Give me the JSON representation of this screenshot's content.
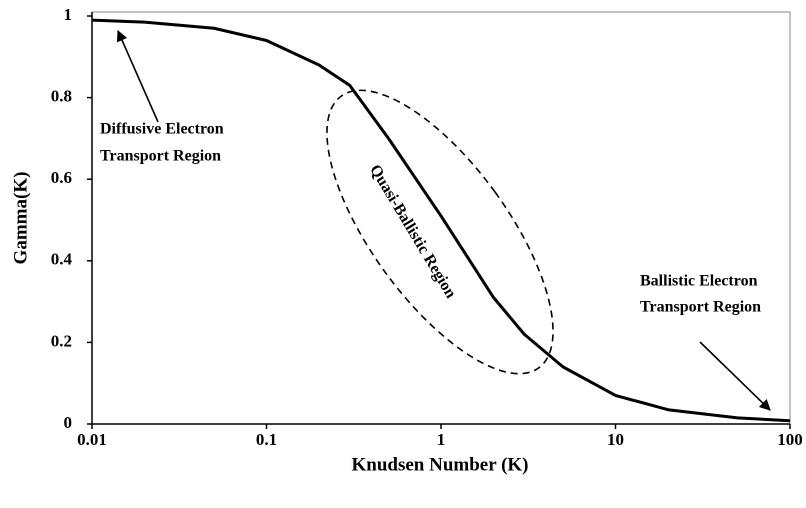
{
  "chart_data": {
    "type": "line",
    "xlabel": "Knudsen Number (K)",
    "ylabel": "Gamma(K)",
    "xscale": "log",
    "xlim": [
      0.01,
      100
    ],
    "ylim": [
      0,
      1
    ],
    "xticks": [
      0.01,
      0.1,
      1,
      10,
      100
    ],
    "yticks": [
      0,
      0.2,
      0.4,
      0.6,
      0.8,
      1
    ],
    "grid": false,
    "series": [
      {
        "color": "#000000",
        "x": [
          0.01,
          0.02,
          0.05,
          0.1,
          0.2,
          0.3,
          0.5,
          1,
          2,
          3,
          5,
          10,
          20,
          50,
          100
        ],
        "values": [
          0.99,
          0.985,
          0.97,
          0.94,
          0.88,
          0.83,
          0.7,
          0.51,
          0.31,
          0.22,
          0.14,
          0.07,
          0.035,
          0.015,
          0.008
        ]
      }
    ],
    "annotations": [
      {
        "text": [
          "Diffusive Electron",
          "Transport Region"
        ]
      },
      {
        "text": [
          "Quasi-Ballistic Region"
        ]
      },
      {
        "text": [
          "Ballistic Electron",
          "Transport Region"
        ]
      }
    ]
  }
}
